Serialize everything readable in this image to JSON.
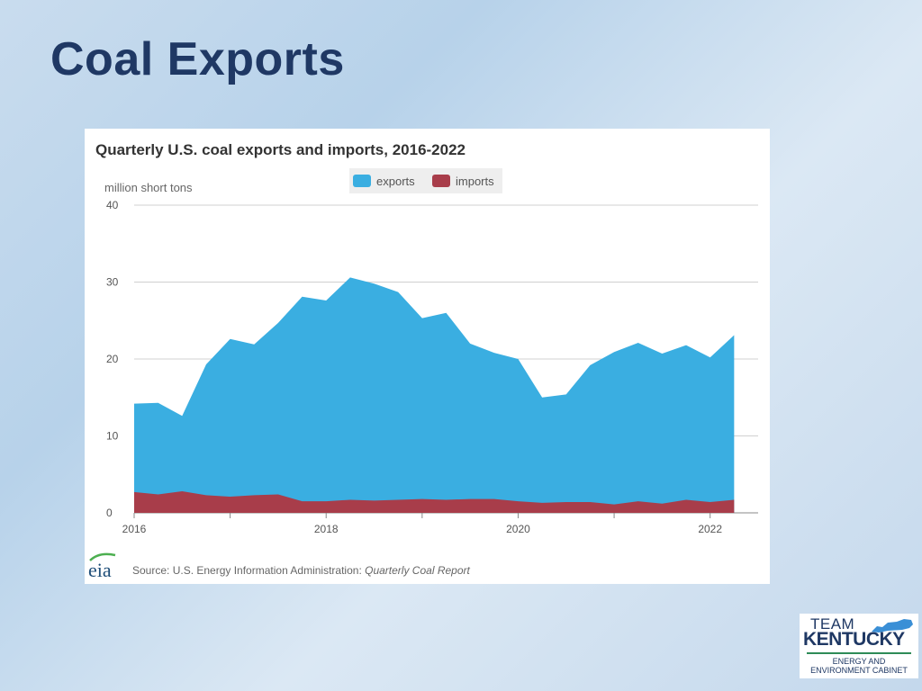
{
  "slide": {
    "title": "Coal Exports"
  },
  "chart_data": {
    "type": "area",
    "title": "Quarterly U.S. coal exports and imports, 2016-2022",
    "ylabel": "million short tons",
    "ylim": [
      0,
      40
    ],
    "yticks": [
      0,
      10,
      20,
      30,
      40
    ],
    "x_start": 2016,
    "x_step": 0.25,
    "xticks": [
      2016,
      2018,
      2020,
      2022
    ],
    "legend": {
      "position": "top-center"
    },
    "series": [
      {
        "name": "exports",
        "color": "#3aaee1",
        "values": [
          14.2,
          14.3,
          12.6,
          19.3,
          22.6,
          21.9,
          24.7,
          28.1,
          27.6,
          30.6,
          29.8,
          28.7,
          25.3,
          26.0,
          22.0,
          20.8,
          20.0,
          15.0,
          15.4,
          19.2,
          20.9,
          22.1,
          20.7,
          21.8,
          20.2,
          23.1
        ]
      },
      {
        "name": "imports",
        "color": "#a83d4a",
        "values": [
          2.7,
          2.4,
          2.8,
          2.3,
          2.1,
          2.3,
          2.4,
          1.5,
          1.5,
          1.7,
          1.6,
          1.7,
          1.8,
          1.7,
          1.8,
          1.8,
          1.5,
          1.3,
          1.4,
          1.4,
          1.1,
          1.5,
          1.2,
          1.7,
          1.4,
          1.7
        ]
      }
    ],
    "source_label": "Source: U.S. Energy Information Administration: ",
    "source_report": "Quarterly Coal Report",
    "source_logo_text": "eia"
  },
  "logo": {
    "line1": "TEAM",
    "line2": "KENTUCKY",
    "line3": "ENERGY AND",
    "line4": "ENVIRONMENT CABINET"
  }
}
